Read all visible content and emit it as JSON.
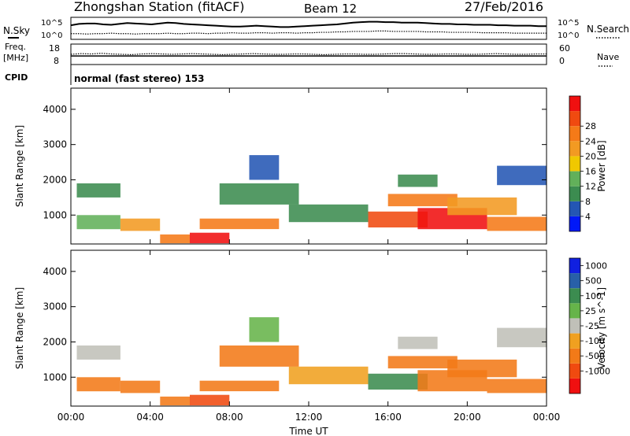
{
  "header": {
    "station": "Zhongshan Station (fitACF)",
    "beam": "Beam 12",
    "date": "27/Feb/2016"
  },
  "chart_data": [
    {
      "type": "line",
      "title": "",
      "left_label": "N.Sky",
      "right_label": "N.Search",
      "left_ticks": [
        "10^5",
        "10^0"
      ],
      "right_ticks": [
        "10^5",
        "10^0"
      ],
      "scale": "log",
      "series": [
        {
          "values": [
            3.2,
            3.5,
            3.6,
            3.6,
            3.4,
            3.3,
            3.5,
            3.7,
            3.6,
            3.5,
            3.4,
            3.6,
            3.8,
            3.7,
            3.5,
            3.4,
            3.3,
            3.2,
            3.1,
            3.0,
            2.9,
            2.9,
            3.0,
            3.1,
            3.0,
            2.9,
            2.8,
            2.8,
            2.9,
            3.0,
            3.1,
            3.2,
            3.3,
            3.4,
            3.6,
            3.8,
            3.9,
            4.0,
            4.0,
            3.9,
            3.9,
            3.8,
            3.8,
            3.8,
            3.7,
            3.6,
            3.5,
            3.5,
            3.4,
            3.4,
            3.3,
            3.3,
            3.3,
            3.2,
            3.2,
            3.1,
            3.1,
            3.1,
            3.0,
            3.0
          ]
        },
        {
          "values": [
            1.3,
            1.3,
            1.2,
            1.3,
            1.3,
            1.4,
            1.3,
            1.3,
            1.2,
            1.3,
            1.3,
            1.3,
            1.4,
            1.3,
            1.3,
            1.4,
            1.4,
            1.3,
            1.4,
            1.4,
            1.5,
            1.4,
            1.4,
            1.5,
            1.5,
            1.4,
            1.5,
            1.5,
            1.4,
            1.5,
            1.5,
            1.6,
            1.6,
            1.7,
            1.7,
            1.8,
            1.8,
            1.8,
            1.9,
            1.9,
            1.8,
            1.8,
            1.8,
            1.8,
            1.7,
            1.7,
            1.7,
            1.6,
            1.6,
            1.6,
            1.6,
            1.5,
            1.5,
            1.5,
            1.5,
            1.4,
            1.4,
            1.4,
            1.4,
            1.4
          ]
        }
      ]
    },
    {
      "type": "line",
      "title": "",
      "left_label": "Freq.",
      "left_unit": "[MHz]",
      "right_label": "Nave",
      "left_ticks": [
        "18",
        "8"
      ],
      "right_ticks": [
        "60",
        "0"
      ],
      "series": [
        {
          "name": "Freq.",
          "values": [
            12.2,
            12.2,
            12.2,
            12.2,
            12.2,
            12.2,
            12.2,
            12.2,
            12.2,
            12.2,
            12.2,
            12.2,
            12.2,
            12.2,
            12.2,
            12.2,
            12.2,
            12.2,
            12.2,
            12.2,
            12.2,
            12.2,
            12.2,
            12.2,
            12.2,
            12.2,
            12.2,
            12.2,
            12.2,
            12.2,
            12.2,
            12.2,
            12.2,
            12.2,
            12.2,
            12.2,
            12.2,
            12.2,
            12.2,
            12.2,
            12.2,
            12.2,
            12.2,
            12.2,
            12.2,
            12.2,
            12.2,
            12.2
          ]
        },
        {
          "name": "Nave",
          "values": [
            30,
            32,
            31,
            33,
            31,
            30,
            29,
            31,
            32,
            31,
            30,
            31,
            32,
            31,
            30,
            29,
            30,
            31,
            32,
            31,
            30,
            30,
            31,
            31,
            30,
            29,
            30,
            31,
            31,
            30,
            30,
            31,
            32,
            32,
            31,
            30,
            30,
            31,
            31,
            30,
            30,
            31,
            32,
            31,
            30,
            30,
            31,
            31
          ]
        }
      ]
    },
    {
      "type": "heatmap",
      "title": "",
      "ylabel": "Slant Range [km]",
      "yticks": [
        "1000",
        "2000",
        "3000",
        "4000"
      ],
      "ylim": [
        180,
        4600
      ],
      "colorbar_label": "Power [dB]",
      "colorbar_ticks": [
        "4",
        "8",
        "12",
        "16",
        "20",
        "24",
        "28"
      ],
      "colorbar_colors": [
        "#0018f8",
        "#2456b4",
        "#3c8c50",
        "#62b05a",
        "#f0c800",
        "#f29a22",
        "#f57a18",
        "#f04a10",
        "#f01010"
      ],
      "clim": [
        0,
        30
      ],
      "cells": [
        {
          "t": [
            0.3,
            2.5
          ],
          "r": [
            600,
            1000
          ],
          "v": 12
        },
        {
          "t": [
            0.3,
            2.5
          ],
          "r": [
            1500,
            1900
          ],
          "v": 7
        },
        {
          "t": [
            2.5,
            4.5
          ],
          "r": [
            550,
            900
          ],
          "v": 18
        },
        {
          "t": [
            4.5,
            6.0
          ],
          "r": [
            200,
            450
          ],
          "v": 22
        },
        {
          "t": [
            6.0,
            8.0
          ],
          "r": [
            200,
            500
          ],
          "v": 27
        },
        {
          "t": [
            6.5,
            10.5
          ],
          "r": [
            600,
            900
          ],
          "v": 23
        },
        {
          "t": [
            7.5,
            11.5
          ],
          "r": [
            1300,
            1900
          ],
          "v": 7
        },
        {
          "t": [
            9.0,
            10.5
          ],
          "r": [
            2000,
            2700
          ],
          "v": 6
        },
        {
          "t": [
            11.0,
            15.0
          ],
          "r": [
            800,
            1300
          ],
          "v": 9
        },
        {
          "t": [
            15.0,
            18.0
          ],
          "r": [
            650,
            1100
          ],
          "v": 25
        },
        {
          "t": [
            16.0,
            19.5
          ],
          "r": [
            1250,
            1600
          ],
          "v": 21
        },
        {
          "t": [
            17.5,
            21.0
          ],
          "r": [
            600,
            1200
          ],
          "v": 28
        },
        {
          "t": [
            19.0,
            22.5
          ],
          "r": [
            1000,
            1500
          ],
          "v": 19
        },
        {
          "t": [
            21.0,
            24.0
          ],
          "r": [
            550,
            950
          ],
          "v": 22
        },
        {
          "t": [
            16.5,
            18.5
          ],
          "r": [
            1800,
            2150
          ],
          "v": 8
        },
        {
          "t": [
            21.5,
            24.0
          ],
          "r": [
            1850,
            2400
          ],
          "v": 6
        }
      ]
    },
    {
      "type": "heatmap",
      "title": "",
      "ylabel": "Slant Range [km]",
      "ylabel_unit": "",
      "yticks": [
        "1000",
        "2000",
        "3000",
        "4000"
      ],
      "ylim": [
        180,
        4600
      ],
      "colorbar_label": "Velocity [m s^-1]",
      "colorbar_ticks": [
        "1000",
        "500",
        "100",
        "25",
        "-25",
        "-100",
        "-500",
        "-1000"
      ],
      "colorbar_colors": [
        "#1020e0",
        "#2860a8",
        "#3c8c50",
        "#66b44a",
        "#c0c0b8",
        "#f0a020",
        "#f27a18",
        "#f04a10",
        "#f01010"
      ],
      "cells": [
        {
          "t": [
            0.3,
            2.5
          ],
          "r": [
            600,
            1000
          ],
          "v": -300
        },
        {
          "t": [
            0.3,
            2.5
          ],
          "r": [
            1500,
            1900
          ],
          "v": 0
        },
        {
          "t": [
            2.5,
            4.5
          ],
          "r": [
            550,
            900
          ],
          "v": -250
        },
        {
          "t": [
            4.5,
            6.0
          ],
          "r": [
            200,
            450
          ],
          "v": -400
        },
        {
          "t": [
            6.0,
            8.0
          ],
          "r": [
            200,
            500
          ],
          "v": -600
        },
        {
          "t": [
            6.5,
            10.5
          ],
          "r": [
            600,
            900
          ],
          "v": -350
        },
        {
          "t": [
            7.5,
            11.5
          ],
          "r": [
            1300,
            1900
          ],
          "v": -150
        },
        {
          "t": [
            9.0,
            10.5
          ],
          "r": [
            2000,
            2700
          ],
          "v": 80
        },
        {
          "t": [
            11.0,
            15.0
          ],
          "r": [
            800,
            1300
          ],
          "v": -80
        },
        {
          "t": [
            15.0,
            18.0
          ],
          "r": [
            650,
            1100
          ],
          "v": 200
        },
        {
          "t": [
            16.0,
            19.5
          ],
          "r": [
            1250,
            1600
          ],
          "v": -300
        },
        {
          "t": [
            17.5,
            21.0
          ],
          "r": [
            600,
            1200
          ],
          "v": -500
        },
        {
          "t": [
            19.0,
            22.5
          ],
          "r": [
            1000,
            1500
          ],
          "v": -200
        },
        {
          "t": [
            21.0,
            24.0
          ],
          "r": [
            550,
            950
          ],
          "v": -450
        },
        {
          "t": [
            16.5,
            18.5
          ],
          "r": [
            1800,
            2150
          ],
          "v": 0
        },
        {
          "t": [
            21.5,
            24.0
          ],
          "r": [
            1850,
            2400
          ],
          "v": 5
        }
      ]
    }
  ],
  "cpid": {
    "label": "CPID",
    "mode": "normal (fast stereo) 153"
  },
  "xaxis": {
    "label": "Time UT",
    "ticks": [
      "00:00",
      "04:00",
      "08:00",
      "12:00",
      "16:00",
      "20:00",
      "00:00"
    ],
    "range_hours": [
      0,
      24
    ]
  }
}
